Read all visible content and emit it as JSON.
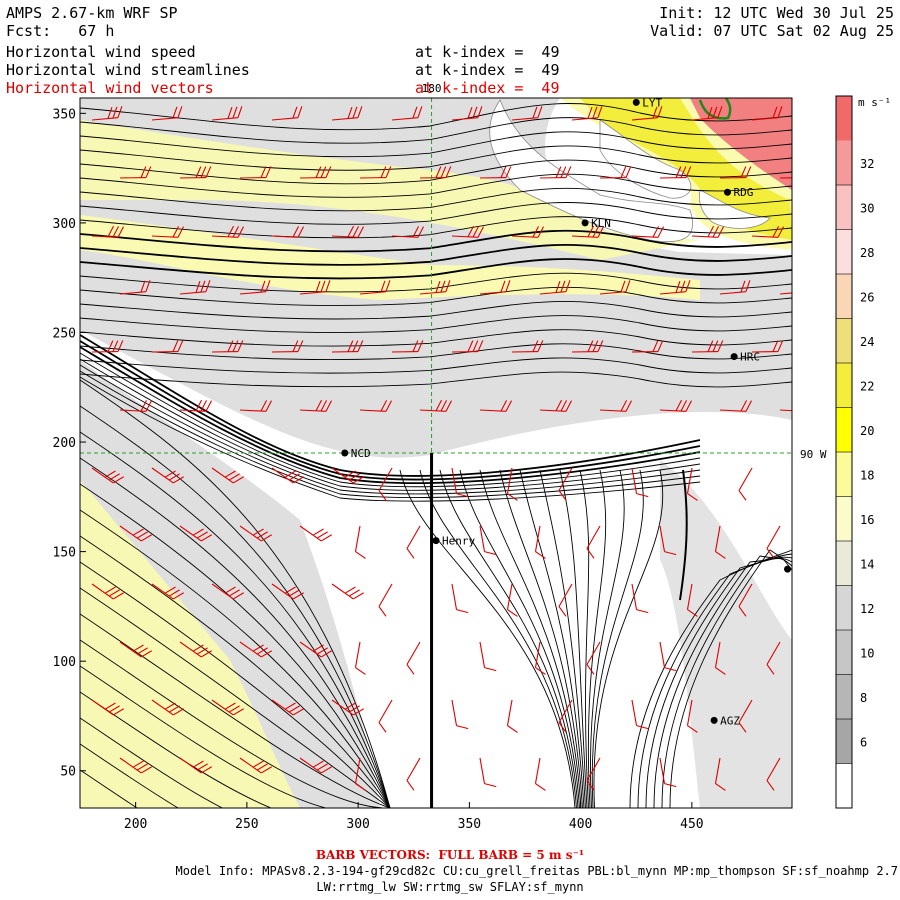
{
  "header": {
    "model": "AMPS 2.67-km WRF SP",
    "fcst_label": "Fcst:",
    "fcst_value": "67 h",
    "init": "Init: 12 UTC Wed 30 Jul 25",
    "valid": "Valid: 07 UTC Sat 02 Aug 25",
    "fields": [
      {
        "name": "Horizontal wind speed",
        "level": "at k-index =  49"
      },
      {
        "name": "Horizontal wind streamlines",
        "level": "at k-index =  49"
      },
      {
        "name": "Horizontal wind vectors",
        "level": "at k-index =  49"
      }
    ]
  },
  "map": {
    "x_ticks": [
      "200",
      "250",
      "300",
      "350",
      "400",
      "450"
    ],
    "x_tick_values": [
      200,
      250,
      300,
      350,
      400,
      450
    ],
    "y_ticks": [
      "350",
      "300",
      "250",
      "200",
      "150",
      "100",
      "50"
    ],
    "y_tick_values": [
      350,
      300,
      250,
      200,
      150,
      100,
      50
    ],
    "x_range": [
      175,
      495
    ],
    "y_range": [
      33,
      357
    ],
    "meridian_label": "180",
    "meridian_x": 333,
    "parallel_label": "90 W",
    "parallel_y": 195,
    "stations": [
      {
        "name": "NCD",
        "x": 294,
        "y": 195
      },
      {
        "name": "Henry",
        "x": 335,
        "y": 155
      },
      {
        "name": "KLN",
        "x": 402,
        "y": 300
      },
      {
        "name": "RDG",
        "x": 466,
        "y": 314
      },
      {
        "name": "HRC",
        "x": 469,
        "y": 239
      },
      {
        "name": "AGZ",
        "x": 460,
        "y": 73
      },
      {
        "name": "LYT",
        "x": 425,
        "y": 355
      },
      {
        "name": "",
        "x": 493,
        "y": 142
      }
    ]
  },
  "colorbar": {
    "unit": "m s⁻¹",
    "labels": [
      "32",
      "30",
      "28",
      "26",
      "24",
      "22",
      "20",
      "18",
      "16",
      "14",
      "12",
      "10",
      "8",
      "6"
    ],
    "colors": [
      "#f06a6a",
      "#f49a9a",
      "#f8c2c2",
      "#fbdede",
      "#f9d6b6",
      "#efdf7a",
      "#f3ee3c",
      "#ffff00",
      "#fbfb9a",
      "#fbfbcc",
      "#eaeada",
      "#d6d6d6",
      "#c6c6c6",
      "#b6b6b6",
      "#a6a6a6",
      "#ffffff"
    ]
  },
  "footer": {
    "barb_label": "BARB VECTORS:  FULL BARB = 5 m s⁻¹",
    "model_info": "Model Info: MPASv8.2.3-194-gf29cd82c CU:cu_grell_freitas PBL:bl_mynn MP:mp_thompson SF:sf_noahmp 2.7",
    "model_info2": "LW:rrtmg_lw SW:rrtmg_sw SFLAY:sf_mynn"
  },
  "colors": {
    "barb": "#e00000",
    "streamline": "#000000",
    "grid": "#2a9d2a",
    "speed_fill": [
      "#d9d9d9",
      "#fbfbb0",
      "#f3ee3c",
      "#f28080"
    ]
  }
}
